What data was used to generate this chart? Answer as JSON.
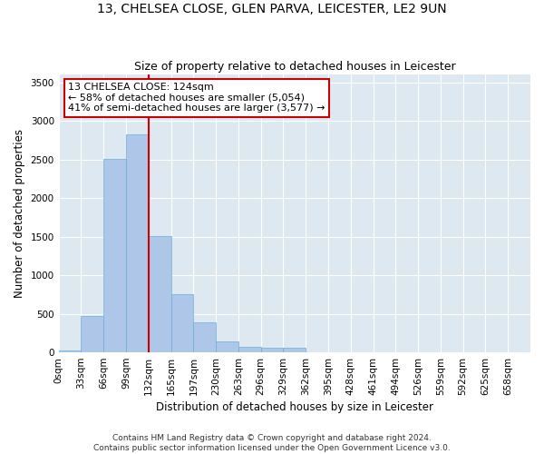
{
  "title1": "13, CHELSEA CLOSE, GLEN PARVA, LEICESTER, LE2 9UN",
  "title2": "Size of property relative to detached houses in Leicester",
  "xlabel": "Distribution of detached houses by size in Leicester",
  "ylabel": "Number of detached properties",
  "bin_labels": [
    "0sqm",
    "33sqm",
    "66sqm",
    "99sqm",
    "132sqm",
    "165sqm",
    "197sqm",
    "230sqm",
    "263sqm",
    "296sqm",
    "329sqm",
    "362sqm",
    "395sqm",
    "428sqm",
    "461sqm",
    "494sqm",
    "526sqm",
    "559sqm",
    "592sqm",
    "625sqm",
    "658sqm"
  ],
  "bar_heights": [
    20,
    475,
    2510,
    2820,
    1510,
    750,
    385,
    140,
    70,
    55,
    55,
    0,
    0,
    0,
    0,
    0,
    0,
    0,
    0,
    0,
    0
  ],
  "bar_color": "#aec6e8",
  "bar_edge_color": "#6baed6",
  "vline_x": 4,
  "annotation_line1": "13 CHELSEA CLOSE: 124sqm",
  "annotation_line2": "← 58% of detached houses are smaller (5,054)",
  "annotation_line3": "41% of semi-detached houses are larger (3,577) →",
  "annotation_box_color": "#cc0000",
  "vline_color": "#cc0000",
  "ylim": [
    0,
    3600
  ],
  "yticks": [
    0,
    500,
    1000,
    1500,
    2000,
    2500,
    3000,
    3500
  ],
  "bg_color": "#dde8f0",
  "footer1": "Contains HM Land Registry data © Crown copyright and database right 2024.",
  "footer2": "Contains public sector information licensed under the Open Government Licence v3.0.",
  "title_fontsize": 10,
  "subtitle_fontsize": 9,
  "axis_label_fontsize": 8.5,
  "tick_fontsize": 7.5,
  "footer_fontsize": 6.5,
  "annotation_fontsize": 8
}
